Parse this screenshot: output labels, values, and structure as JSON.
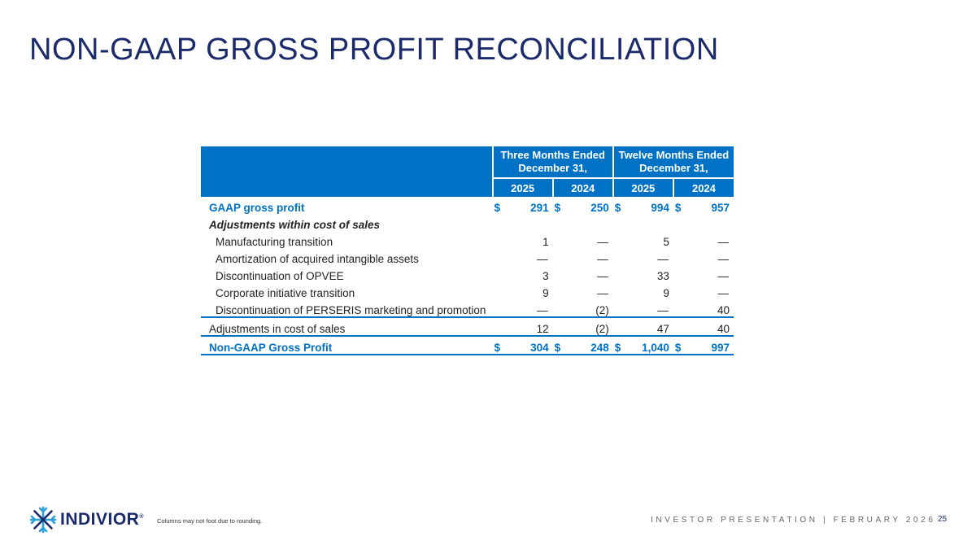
{
  "title": "NON-GAAP GROSS PROFIT RECONCILIATION",
  "table": {
    "header": {
      "group1": [
        "Three Months Ended",
        "December 31,"
      ],
      "group2": [
        "Twelve Months Ended",
        "December 31,"
      ],
      "years": [
        "2025",
        "2024",
        "2025",
        "2024"
      ]
    },
    "gaap": {
      "label": "GAAP gross profit",
      "dollar": "$",
      "values": [
        "291",
        "250",
        "994",
        "957"
      ]
    },
    "adjustments_heading": "Adjustments within cost of sales",
    "items": [
      {
        "label": "Manufacturing transition",
        "values": [
          "1",
          "—",
          "5",
          "—"
        ]
      },
      {
        "label": "Amortization of acquired intangible assets",
        "values": [
          "—",
          "—",
          "—",
          "—"
        ]
      },
      {
        "label": "Discontinuation of OPVEE",
        "values": [
          "3",
          "—",
          "33",
          "—"
        ]
      },
      {
        "label": "Corporate initiative transition",
        "values": [
          "9",
          "—",
          "9",
          "—"
        ]
      },
      {
        "label": "Discontinuation of PERSERIS marketing and promotion",
        "values": [
          "—",
          "(2)",
          "—",
          "40"
        ]
      }
    ],
    "adjustments_total": {
      "label": "Adjustments in cost of sales",
      "values": [
        "12",
        "(2)",
        "47",
        "40"
      ]
    },
    "non_gaap": {
      "label": "Non-GAAP Gross Profit",
      "dollar": "$",
      "values": [
        "304",
        "248",
        "1,040",
        "997"
      ]
    }
  },
  "footer": {
    "logo_text": "INDIVIOR",
    "logo_mark": "®",
    "footnote": "Columns may not foot due to rounding.",
    "presentation": "INVESTOR PRESENTATION | FEBRUARY 2026",
    "page_number": "25"
  },
  "colors": {
    "navy": "#1b2a6b",
    "blue": "#0072c6",
    "teal": "#2a9fd6"
  }
}
